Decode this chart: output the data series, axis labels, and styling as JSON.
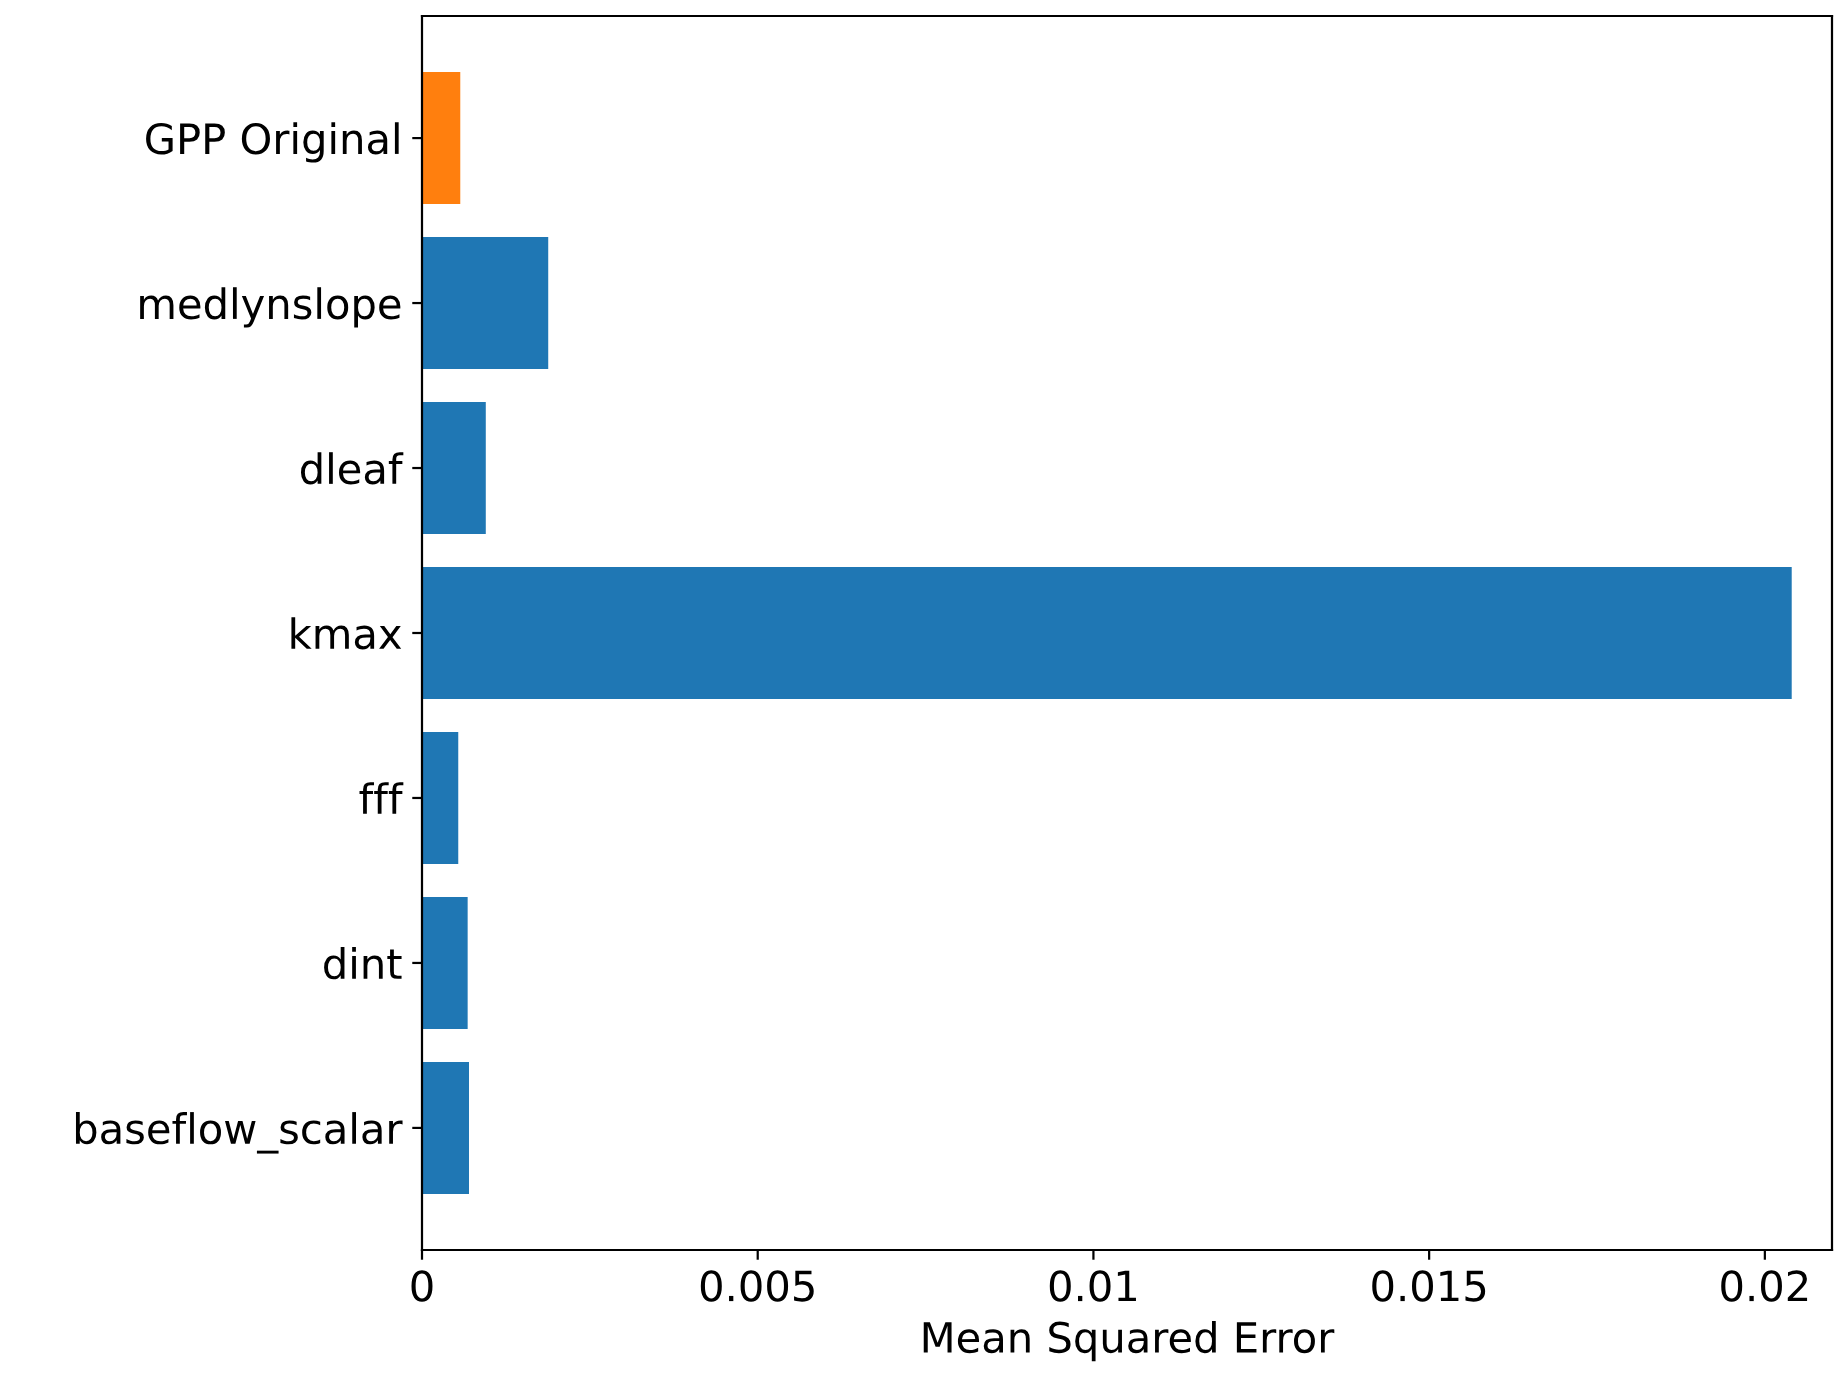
{
  "chart_data": {
    "type": "bar",
    "orientation": "horizontal",
    "xlabel": "Mean Squared Error",
    "categories": [
      "GPP Original",
      "medlynslope",
      "dleaf",
      "kmax",
      "fff",
      "dint",
      "baseflow_scalar"
    ],
    "values": [
      0.00057,
      0.00188,
      0.00095,
      0.0204,
      0.00054,
      0.00068,
      0.0007
    ],
    "colors": [
      "#ff7f0e",
      "#1f77b4",
      "#1f77b4",
      "#1f77b4",
      "#1f77b4",
      "#1f77b4",
      "#1f77b4"
    ],
    "xlim": [
      0,
      0.021
    ],
    "xticks": [
      0,
      0.005,
      0.01,
      0.015,
      0.02
    ],
    "grid": false,
    "legend": false
  }
}
